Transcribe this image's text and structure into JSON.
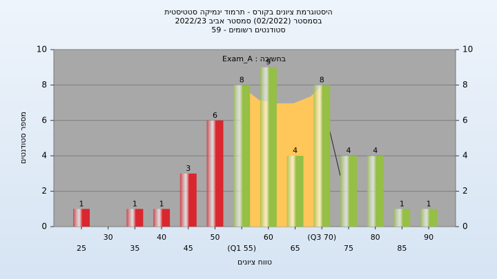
{
  "chart_data": {
    "type": "bar",
    "title_lines": [
      "היסטוגרמת ציונים בקורס - תרמוד ינמיקה סטטיסטית",
      "בסמסטר (02/2022)  סמסטר אביב 2022/23",
      "סטודנטים רשומים - 59"
    ],
    "annotation": "Exam_A : בחשיבה",
    "xlabel": "טווח ציונים",
    "ylabel": "מספר סטודנטים",
    "categories": [
      "25",
      "30",
      "35",
      "40",
      "45",
      "50",
      "(Q1 55)",
      "60",
      "65",
      "(Q3 70)",
      "75",
      "80",
      "85",
      "90"
    ],
    "values": [
      1,
      0,
      1,
      1,
      3,
      6,
      8,
      9,
      4,
      8,
      4,
      4,
      1,
      1
    ],
    "colors": [
      "#d9262f",
      "#d9262f",
      "#d9262f",
      "#d9262f",
      "#d9262f",
      "#d9262f",
      "#95bf45",
      "#95bf45",
      "#95bf45",
      "#95bf45",
      "#95bf45",
      "#95bf45",
      "#95bf45",
      "#95bf45"
    ],
    "ylim": [
      0,
      10
    ],
    "yticks": [
      0,
      2,
      4,
      6,
      8,
      10
    ],
    "grid": true
  }
}
